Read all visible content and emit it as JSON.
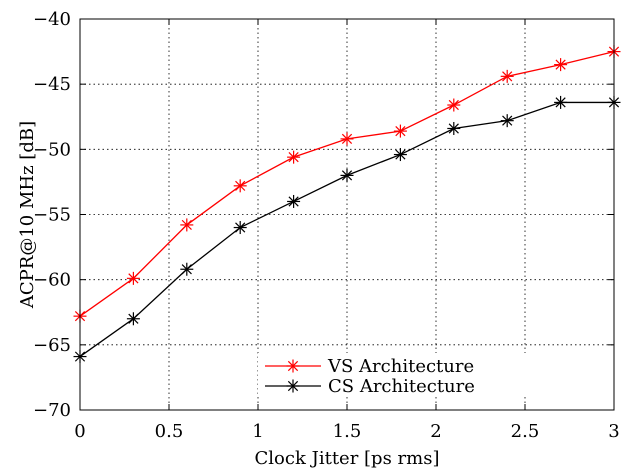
{
  "chart_data": {
    "type": "line",
    "xlabel": "Clock Jitter [ps rms]",
    "ylabel": "ACPR@10 MHz [dB]",
    "xlim": [
      0,
      3
    ],
    "ylim": [
      -70,
      -40
    ],
    "xticks": [
      0,
      0.5,
      1,
      1.5,
      2,
      2.5,
      3
    ],
    "xtick_labels": [
      "0",
      "0.5",
      "1",
      "1.5",
      "2",
      "2.5",
      "3"
    ],
    "yticks": [
      -70,
      -65,
      -60,
      -55,
      -50,
      -45,
      -40
    ],
    "ytick_labels": [
      "−70",
      "−65",
      "−60",
      "−55",
      "−50",
      "−45",
      "−40"
    ],
    "grid": true,
    "legend_position": "bottom-center",
    "x": [
      0,
      0.3,
      0.6,
      0.9,
      1.2,
      1.5,
      1.8,
      2.1,
      2.4,
      2.7,
      3.0
    ],
    "series": [
      {
        "name": "VS Architecture",
        "color": "#ff0000",
        "marker": "asterisk",
        "values": [
          -62.8,
          -59.9,
          -55.8,
          -52.8,
          -50.6,
          -49.2,
          -48.6,
          -46.6,
          -44.4,
          -43.5,
          -42.5
        ]
      },
      {
        "name": "CS Architecture",
        "color": "#000000",
        "marker": "asterisk",
        "values": [
          -65.9,
          -63.0,
          -59.2,
          -56.0,
          -54.0,
          -52.0,
          -50.4,
          -48.4,
          -47.8,
          -46.4,
          -46.4
        ]
      }
    ]
  }
}
